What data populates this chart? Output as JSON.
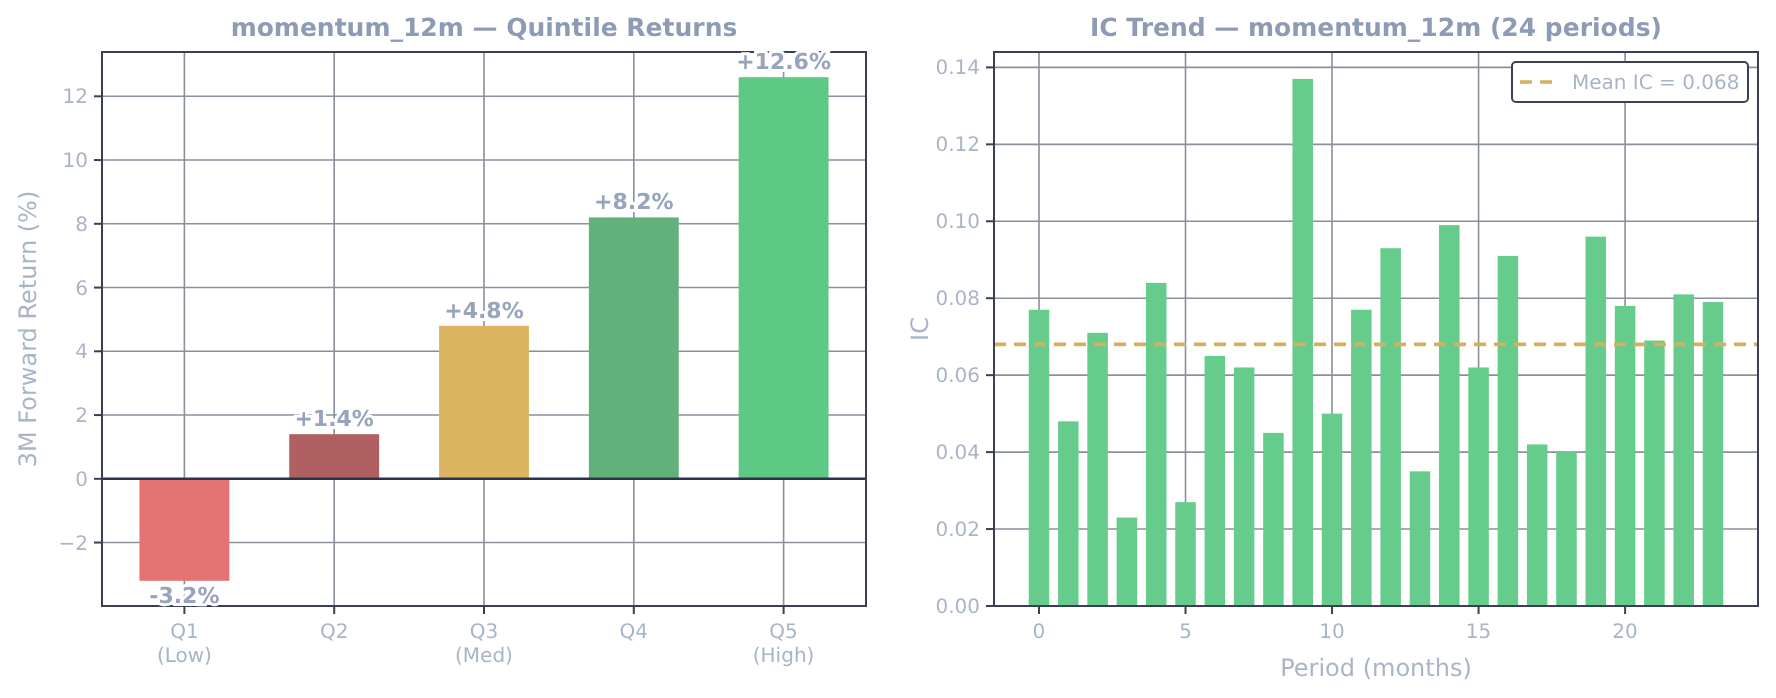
{
  "chart_data": [
    {
      "type": "bar",
      "title": "momentum_12m  —  Quintile Returns",
      "ylabel": "3M Forward Return (%)",
      "categories": [
        "Q1\n(Low)",
        "Q2",
        "Q3\n(Med)",
        "Q4",
        "Q5\n(High)"
      ],
      "values": [
        -3.2,
        1.4,
        4.8,
        8.2,
        12.6
      ],
      "colors": [
        "#e57373",
        "#b06060",
        "#dbb562",
        "#62b07a",
        "#5ec985"
      ],
      "value_labels": [
        "-3.2%",
        "+1.4%",
        "+4.8%",
        "+8.2%",
        "+12.6%"
      ],
      "ylim": [
        -3.99,
        13.39
      ],
      "yticks": [
        {
          "value": -2,
          "label": "−2"
        },
        0,
        2,
        4,
        6,
        8,
        10,
        12
      ],
      "ref_lines": [
        {
          "axis": "y",
          "value": 0,
          "color": "#2a3347"
        }
      ],
      "grid": true
    },
    {
      "type": "bar",
      "title": "IC Trend  —  momentum_12m (24 periods)",
      "xlabel": "Period (months)",
      "ylabel": "IC",
      "x": [
        0,
        1,
        2,
        3,
        4,
        5,
        6,
        7,
        8,
        9,
        10,
        11,
        12,
        13,
        14,
        15,
        16,
        17,
        18,
        19,
        20,
        21,
        22,
        23
      ],
      "values": [
        0.077,
        0.048,
        0.071,
        0.023,
        0.084,
        0.027,
        0.065,
        0.062,
        0.045,
        0.137,
        0.05,
        0.077,
        0.093,
        0.035,
        0.099,
        0.062,
        0.091,
        0.042,
        0.04,
        0.096,
        0.078,
        0.069,
        0.081,
        0.079
      ],
      "color": "#66cc8c",
      "xlim": [
        -1.535,
        24.535
      ],
      "xticks": [
        0,
        5,
        10,
        15,
        20
      ],
      "ylim": [
        0,
        0.144
      ],
      "yticks": [
        {
          "value": 0,
          "label": "0.00"
        },
        {
          "value": 0.02,
          "label": "0.02"
        },
        {
          "value": 0.04,
          "label": "0.04"
        },
        {
          "value": 0.06,
          "label": "0.06"
        },
        {
          "value": 0.08,
          "label": "0.08"
        },
        {
          "value": 0.1,
          "label": "0.10"
        },
        {
          "value": 0.12,
          "label": "0.12"
        },
        {
          "value": 0.14,
          "label": "0.14"
        }
      ],
      "ref_lines": [
        {
          "axis": "y",
          "value": 0.068,
          "label": "Mean IC = 0.068",
          "color": "#d4b060",
          "line_style": "dashed"
        }
      ],
      "legend": "top right",
      "grid": true
    }
  ]
}
